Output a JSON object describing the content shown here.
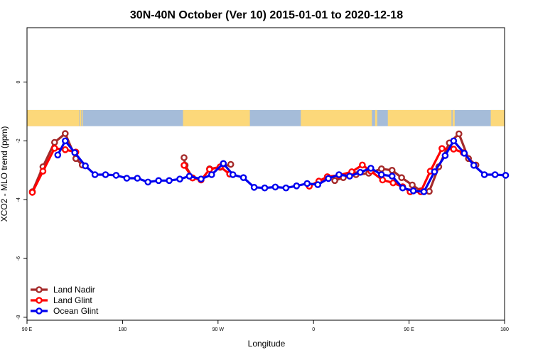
{
  "chart_data": {
    "type": "line",
    "title": "30N-40N October (Ver 10)   2015-01-01 to 2020-12-18",
    "xlabel": "Longitude",
    "ylabel": "XCO2 - MLO trend (ppm)",
    "xlim": [
      90,
      540
    ],
    "ylim": [
      -8.1,
      1.85
    ],
    "x_ticks": [
      {
        "value": 90,
        "label": "90 E"
      },
      {
        "value": 180,
        "label": "180"
      },
      {
        "value": 270,
        "label": "90 W"
      },
      {
        "value": 360,
        "label": "0"
      },
      {
        "value": 450,
        "label": "90 E"
      },
      {
        "value": 540,
        "label": "180"
      }
    ],
    "y_ticks": [
      {
        "value": 0,
        "label": "0"
      },
      {
        "value": -2,
        "label": "-2"
      },
      {
        "value": -4,
        "label": "-4"
      },
      {
        "value": -6,
        "label": "-6"
      },
      {
        "value": -8,
        "label": "-8"
      }
    ],
    "map_band": {
      "y_range": [
        -1.5,
        -0.95
      ],
      "ocean_color": "#a5bcd9",
      "land_color": "#fcd87a",
      "land_spans": [
        [
          90,
          139
        ],
        [
          139.5,
          141
        ],
        [
          141.5,
          142.5
        ],
        [
          237,
          300
        ],
        [
          348,
          415
        ],
        [
          418,
          420
        ],
        [
          430,
          490
        ],
        [
          491,
          493
        ],
        [
          527,
          540
        ]
      ]
    },
    "legend": {
      "position": "bottom-left",
      "entries": [
        "Land Nadir",
        "Land Glint",
        "Ocean Glint"
      ]
    },
    "series": [
      {
        "name": "Land Nadir",
        "color": "#a52a2a",
        "segments": [
          [
            [
              95,
              -3.73
            ],
            [
              105,
              -2.88
            ],
            [
              116,
              -2.05
            ],
            [
              126,
              -1.75
            ],
            [
              136,
              -2.6
            ],
            [
              142,
              -2.82
            ]
          ],
          [
            [
              238,
              -2.57
            ],
            [
              239,
              -2.83
            ],
            [
              246,
              -3.26
            ]
          ],
          [
            [
              262,
              -2.95
            ],
            [
              272,
              -2.9
            ],
            [
              282,
              -2.8
            ]
          ],
          [
            [
              380,
              -3.35
            ],
            [
              388,
              -3.25
            ],
            [
              400,
              -3.15
            ],
            [
              412,
              -3.1
            ],
            [
              424,
              -2.95
            ],
            [
              434,
              -3.0
            ],
            [
              443,
              -3.25
            ],
            [
              453,
              -3.5
            ],
            [
              461,
              -3.7
            ],
            [
              469,
              -3.72
            ],
            [
              478,
              -2.88
            ],
            [
              488,
              -2.07
            ],
            [
              497,
              -1.76
            ],
            [
              506,
              -2.6
            ],
            [
              513,
              -2.82
            ]
          ]
        ]
      },
      {
        "name": "Land Glint",
        "color": "#ff0000",
        "segments": [
          [
            [
              95,
              -3.75
            ],
            [
              105,
              -3.03
            ],
            [
              116,
              -2.25
            ],
            [
              126,
              -2.3
            ],
            [
              136,
              -2.38
            ]
          ],
          [
            [
              238,
              -2.83
            ],
            [
              246,
              -3.26
            ],
            [
              254,
              -3.33
            ],
            [
              262,
              -2.97
            ],
            [
              272,
              -2.88
            ],
            [
              281,
              -3.13
            ]
          ],
          [
            [
              356,
              -3.54
            ],
            [
              365,
              -3.37
            ],
            [
              373,
              -3.22
            ],
            [
              384,
              -3.17
            ],
            [
              396,
              -3.05
            ],
            [
              406,
              -2.82
            ],
            [
              414,
              -3.03
            ],
            [
              425,
              -3.33
            ],
            [
              435,
              -3.43
            ],
            [
              444,
              -3.56
            ],
            [
              451,
              -3.73
            ],
            [
              461,
              -3.73
            ],
            [
              470,
              -3.03
            ],
            [
              481,
              -2.26
            ],
            [
              492,
              -2.28
            ],
            [
              501,
              -2.4
            ]
          ]
        ]
      },
      {
        "name": "Ocean Glint",
        "color": "#0000ee",
        "segments": [
          [
            [
              119,
              -2.48
            ],
            [
              126,
              -2.0
            ],
            [
              135,
              -2.4
            ],
            [
              145,
              -2.85
            ],
            [
              154,
              -3.15
            ],
            [
              164,
              -3.15
            ],
            [
              174,
              -3.17
            ],
            [
              184,
              -3.27
            ],
            [
              194,
              -3.27
            ],
            [
              204,
              -3.4
            ],
            [
              214,
              -3.35
            ],
            [
              224,
              -3.35
            ],
            [
              234,
              -3.3
            ],
            [
              243,
              -3.2
            ],
            [
              254,
              -3.3
            ],
            [
              264,
              -3.15
            ],
            [
              275,
              -2.77
            ],
            [
              284,
              -3.15
            ],
            [
              294,
              -3.25
            ],
            [
              304,
              -3.58
            ],
            [
              314,
              -3.6
            ],
            [
              324,
              -3.57
            ],
            [
              334,
              -3.6
            ],
            [
              344,
              -3.53
            ],
            [
              354,
              -3.45
            ],
            [
              364,
              -3.49
            ],
            [
              374,
              -3.28
            ],
            [
              384,
              -3.15
            ],
            [
              394,
              -3.2
            ],
            [
              404,
              -3.07
            ],
            [
              414,
              -2.93
            ],
            [
              424,
              -3.15
            ],
            [
              434,
              -3.2
            ],
            [
              444,
              -3.6
            ],
            [
              454,
              -3.7
            ],
            [
              464,
              -3.73
            ],
            [
              474,
              -3.05
            ],
            [
              484,
              -2.5
            ],
            [
              492,
              -2.0
            ],
            [
              502,
              -2.42
            ],
            [
              511,
              -2.83
            ],
            [
              521,
              -3.15
            ],
            [
              531,
              -3.15
            ],
            [
              541,
              -3.17
            ]
          ]
        ]
      }
    ]
  }
}
